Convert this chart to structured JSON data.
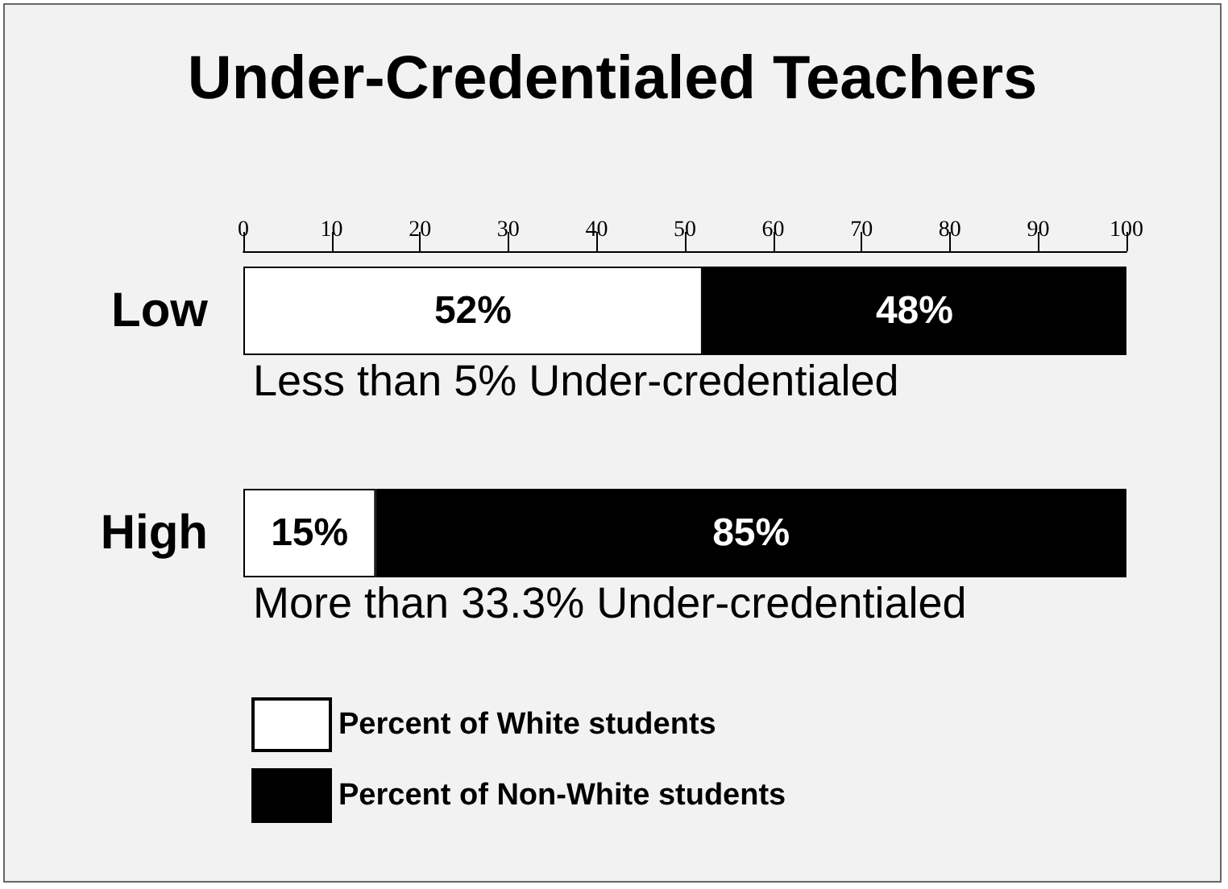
{
  "chart_data": {
    "type": "bar",
    "title": "Under-Credentialed Teachers",
    "orientation": "horizontal",
    "stacked": true,
    "categories": [
      "Low",
      "High"
    ],
    "series": [
      {
        "name": "Percent of White students",
        "color": "#ffffff",
        "values": [
          52,
          15
        ],
        "value_labels": [
          "52%",
          "15%"
        ]
      },
      {
        "name": "Percent of Non-White students",
        "color": "#000000",
        "values": [
          48,
          85
        ],
        "value_labels": [
          "48%",
          "85%"
        ]
      }
    ],
    "xlim": [
      0,
      100
    ],
    "xticks": [
      0,
      10,
      20,
      30,
      40,
      50,
      60,
      70,
      80,
      90,
      100
    ],
    "annotations": [
      "Less than 5% Under-credentialed",
      "More than 33.3% Under-credentialed"
    ],
    "legend": "bottom left",
    "grid": false
  }
}
